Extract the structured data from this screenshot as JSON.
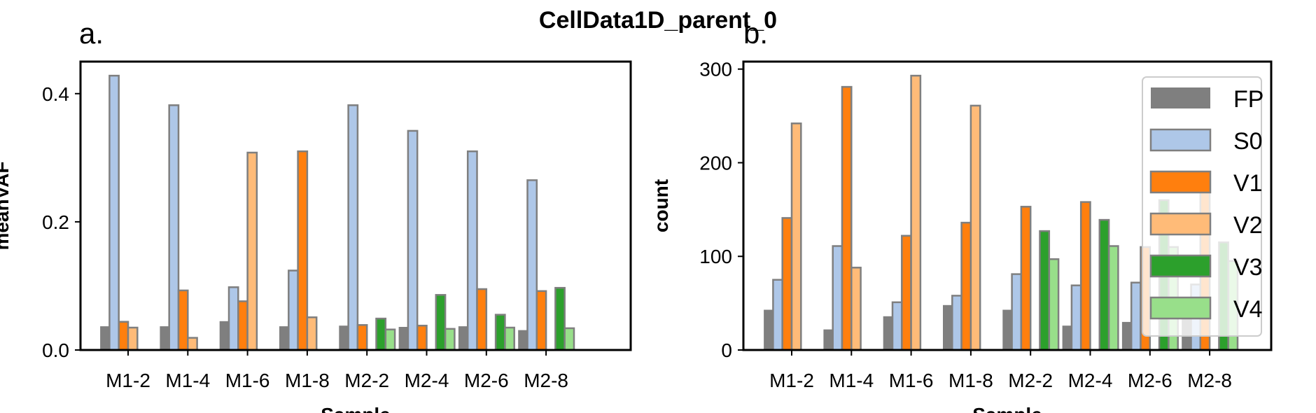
{
  "suptitle": "CellData1D_parent_0",
  "colors": {
    "FP": "#7f7f7f",
    "S0": "#aec7e8",
    "V1": "#ff7f0e",
    "V2": "#ffbb78",
    "V3": "#2ca02c",
    "V4": "#98df8a",
    "bar_edge": "#7f7f7f"
  },
  "chart_data": [
    {
      "type": "bar",
      "panel_label": "a.",
      "categories": [
        "M1-2",
        "M1-4",
        "M1-6",
        "M1-8",
        "M2-2",
        "M2-4",
        "M2-6",
        "M2-8"
      ],
      "xlabel": "Sample",
      "ylabel": "meanVAF",
      "ylim": [
        0,
        0.45
      ],
      "yticks": [
        0.0,
        0.2,
        0.4
      ],
      "ytick_labels": [
        "0.0",
        "0.2",
        "0.4"
      ],
      "series": [
        {
          "name": "FP",
          "values": [
            0.037,
            0.037,
            0.045,
            0.037,
            0.038,
            0.036,
            0.037,
            0.031
          ]
        },
        {
          "name": "S0",
          "values": [
            0.428,
            0.382,
            0.098,
            0.124,
            0.382,
            0.342,
            0.31,
            0.265
          ]
        },
        {
          "name": "V1",
          "values": [
            0.044,
            0.093,
            0.076,
            0.31,
            0.039,
            0.038,
            0.095,
            0.092
          ]
        },
        {
          "name": "V2",
          "values": [
            0.035,
            0.019,
            0.308,
            0.051,
            null,
            null,
            null,
            null
          ]
        },
        {
          "name": "V3",
          "values": [
            null,
            null,
            null,
            null,
            0.049,
            0.086,
            0.055,
            0.097
          ]
        },
        {
          "name": "V4",
          "values": [
            null,
            null,
            null,
            null,
            0.032,
            0.033,
            0.035,
            0.034
          ]
        }
      ]
    },
    {
      "type": "bar",
      "panel_label": "b.",
      "categories": [
        "M1-2",
        "M1-4",
        "M1-6",
        "M1-8",
        "M2-2",
        "M2-4",
        "M2-6",
        "M2-8"
      ],
      "xlabel": "Sample",
      "ylabel": "count",
      "ylim": [
        0,
        308
      ],
      "yticks": [
        0,
        100,
        200,
        300
      ],
      "ytick_labels": [
        "0",
        "100",
        "200",
        "300"
      ],
      "legend": "top-right",
      "series": [
        {
          "name": "FP",
          "values": [
            43,
            22,
            36,
            48,
            43,
            26,
            30,
            33
          ]
        },
        {
          "name": "S0",
          "values": [
            75,
            111,
            51,
            58,
            81,
            69,
            72,
            70
          ]
        },
        {
          "name": "V1",
          "values": [
            141,
            281,
            122,
            136,
            153,
            158,
            110,
            175
          ]
        },
        {
          "name": "V2",
          "values": [
            242,
            88,
            293,
            261,
            null,
            null,
            null,
            null
          ]
        },
        {
          "name": "V3",
          "values": [
            null,
            null,
            null,
            null,
            127,
            139,
            160,
            115
          ]
        },
        {
          "name": "V4",
          "values": [
            null,
            null,
            null,
            null,
            97,
            111,
            110,
            95
          ]
        }
      ]
    }
  ]
}
